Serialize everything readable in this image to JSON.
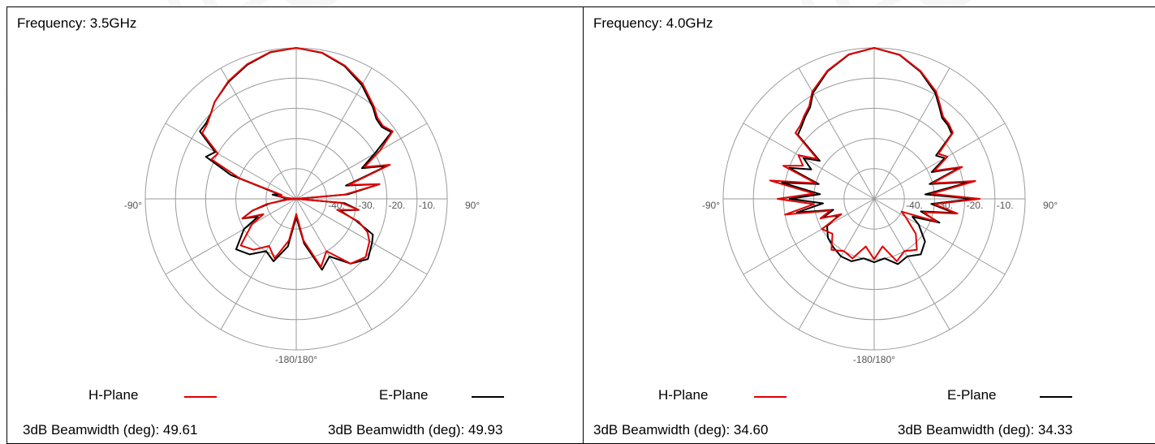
{
  "watermark": "A-INFO",
  "colors": {
    "h_plane": "#e00000",
    "e_plane": "#000000",
    "grid": "#9a9a9a"
  },
  "chart_data": [
    {
      "type": "polar-line",
      "title": "Frequency: 3.5GHz",
      "angle_labels": [
        "-90°",
        "90°",
        "-180/180°"
      ],
      "ring_labels": [
        "-40.",
        "-30.",
        "-20.",
        "-10."
      ],
      "r_range_db": [
        -50,
        0
      ],
      "grid": true,
      "legend": [
        {
          "name": "H-Plane",
          "color": "#e00000"
        },
        {
          "name": "E-Plane",
          "color": "#000000"
        }
      ],
      "beamwidth": [
        "3dB Beamwidth (deg): 49.61",
        "3dB Beamwidth (deg): 49.93"
      ],
      "series": [
        {
          "name": "H-Plane",
          "angles_deg": [
            0,
            10,
            20,
            30,
            40,
            45,
            50,
            55,
            60,
            65,
            70,
            75,
            80,
            85,
            90,
            95,
            100,
            105,
            110,
            115,
            120,
            130,
            140,
            150,
            160,
            170,
            180,
            190,
            200,
            210,
            220,
            230,
            240,
            245,
            250,
            255,
            260,
            265,
            270,
            275,
            280,
            285,
            290,
            295,
            300,
            305,
            310,
            315,
            320,
            330,
            340,
            350
          ],
          "gain_db": [
            0,
            -0.8,
            -3,
            -6,
            -10,
            -12,
            -12.5,
            -11,
            -18,
            -25,
            -17,
            -32,
            -22,
            -34,
            -50,
            -35,
            -29,
            -36,
            -28,
            -24,
            -22,
            -20,
            -22,
            -30,
            -26,
            -36,
            -45,
            -36,
            -29,
            -32,
            -28,
            -26,
            -33,
            -38,
            -31,
            -35,
            -40,
            -47,
            -50,
            -47,
            -44,
            -45,
            -30,
            -19,
            -20,
            -12,
            -11.5,
            -10,
            -8,
            -5,
            -2.5,
            -0.6
          ]
        },
        {
          "name": "E-Plane",
          "angles_deg": [
            0,
            10,
            20,
            30,
            40,
            45,
            50,
            55,
            60,
            65,
            70,
            75,
            80,
            85,
            90,
            95,
            100,
            105,
            110,
            115,
            120,
            130,
            140,
            150,
            160,
            170,
            180,
            190,
            200,
            210,
            220,
            230,
            240,
            245,
            250,
            255,
            260,
            265,
            270,
            275,
            280,
            285,
            290,
            295,
            300,
            305,
            310,
            315,
            320,
            330,
            340,
            350
          ],
          "gain_db": [
            0,
            -0.9,
            -3.2,
            -6.5,
            -10.5,
            -12.5,
            -13,
            -11.5,
            -20,
            -26,
            -18,
            -33,
            -22,
            -33,
            -50,
            -34,
            -29,
            -35,
            -29,
            -22,
            -21,
            -19,
            -22,
            -28,
            -25,
            -35,
            -44,
            -34,
            -28,
            -30,
            -26,
            -24,
            -30,
            -36,
            -31,
            -35,
            -41,
            -46,
            -50,
            -46,
            -42,
            -44,
            -27,
            -17,
            -19,
            -11,
            -11,
            -10,
            -8,
            -5.2,
            -2.7,
            -0.7
          ]
        }
      ]
    },
    {
      "type": "polar-line",
      "title": "Frequency: 4.0GHz",
      "angle_labels": [
        "-90°",
        "90°",
        "-180/180°"
      ],
      "ring_labels": [
        "-40.",
        "-30.",
        "-20.",
        "-10."
      ],
      "r_range_db": [
        -50,
        0
      ],
      "grid": true,
      "legend": [
        {
          "name": "H-Plane",
          "color": "#e00000"
        },
        {
          "name": "E-Plane",
          "color": "#000000"
        }
      ],
      "beamwidth": [
        "3dB Beamwidth (deg): 34.60",
        "3dB Beamwidth (deg): 34.33"
      ],
      "series": [
        {
          "name": "H-Plane",
          "angles_deg": [
            0,
            10,
            20,
            30,
            35,
            40,
            45,
            50,
            55,
            60,
            65,
            70,
            75,
            80,
            85,
            90,
            95,
            100,
            105,
            110,
            115,
            120,
            130,
            140,
            150,
            160,
            170,
            180,
            190,
            200,
            210,
            220,
            230,
            240,
            245,
            250,
            255,
            260,
            265,
            270,
            275,
            280,
            285,
            290,
            295,
            300,
            305,
            310,
            315,
            320,
            325,
            330,
            340,
            350
          ],
          "gain_db": [
            0,
            -1.5,
            -5,
            -9,
            -12,
            -14.5,
            -15,
            -16,
            -24,
            -22,
            -28,
            -19,
            -30,
            -16,
            -31,
            -15,
            -30,
            -22,
            -33,
            -28,
            -40,
            -38,
            -32,
            -28,
            -30,
            -28,
            -34,
            -30,
            -34,
            -29,
            -30,
            -28,
            -32,
            -30,
            -38,
            -31,
            -35,
            -20,
            -30,
            -18,
            -30,
            -15,
            -30,
            -18,
            -24,
            -21,
            -27,
            -16,
            -15.5,
            -14,
            -12.5,
            -9,
            -4.8,
            -1.4
          ]
        },
        {
          "name": "E-Plane",
          "angles_deg": [
            0,
            10,
            20,
            30,
            35,
            40,
            45,
            50,
            55,
            60,
            65,
            70,
            75,
            80,
            85,
            90,
            95,
            100,
            105,
            110,
            115,
            120,
            130,
            140,
            150,
            160,
            170,
            180,
            190,
            200,
            210,
            220,
            230,
            240,
            245,
            250,
            255,
            260,
            265,
            270,
            275,
            280,
            285,
            290,
            295,
            300,
            305,
            310,
            315,
            320,
            325,
            330,
            340,
            350
          ],
          "gain_db": [
            0,
            -1.6,
            -5.2,
            -9.5,
            -12.5,
            -15,
            -15.5,
            -16.5,
            -25,
            -23,
            -29,
            -20,
            -31,
            -18,
            -33,
            -17,
            -31,
            -23,
            -34,
            -27,
            -36,
            -33,
            -28,
            -26,
            -28,
            -27,
            -30,
            -29,
            -30,
            -28,
            -28,
            -29,
            -30,
            -32,
            -37,
            -32,
            -36,
            -24,
            -33,
            -22,
            -32,
            -19,
            -31,
            -20,
            -27,
            -23,
            -28,
            -17,
            -16,
            -14.5,
            -13,
            -9.5,
            -5,
            -1.5
          ]
        }
      ]
    }
  ]
}
